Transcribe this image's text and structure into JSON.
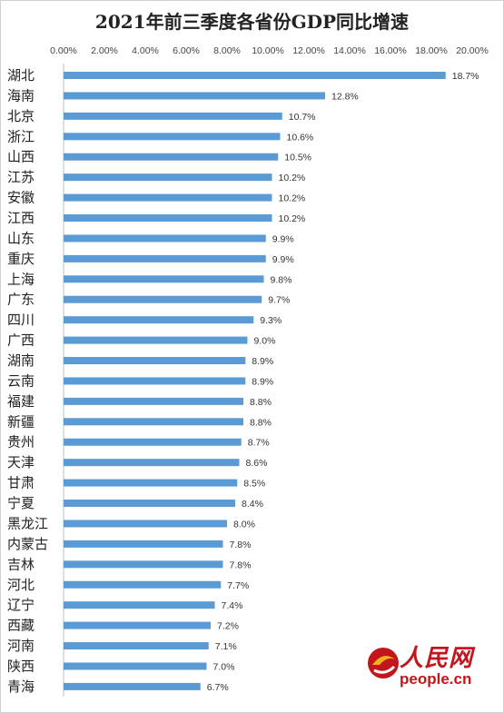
{
  "chart_data": {
    "type": "bar",
    "orientation": "horizontal",
    "title": "2021年前三季度各省份GDP同比增速",
    "xlim": [
      0,
      20
    ],
    "x_ticks": [
      "0.00%",
      "2.00%",
      "4.00%",
      "6.00%",
      "8.00%",
      "10.00%",
      "12.00%",
      "14.00%",
      "16.00%",
      "18.00%",
      "20.00%"
    ],
    "x_axis_position": "top",
    "grid": false,
    "bar_color": "#5b9bd5",
    "categories": [
      "湖北",
      "海南",
      "北京",
      "浙江",
      "山西",
      "江苏",
      "安徽",
      "江西",
      "山东",
      "重庆",
      "上海",
      "广东",
      "四川",
      "广西",
      "湖南",
      "云南",
      "福建",
      "新疆",
      "贵州",
      "天津",
      "甘肃",
      "宁夏",
      "黑龙江",
      "内蒙古",
      "吉林",
      "河北",
      "辽宁",
      "西藏",
      "河南",
      "陕西",
      "青海"
    ],
    "values": [
      18.7,
      12.8,
      10.7,
      10.6,
      10.5,
      10.2,
      10.2,
      10.2,
      9.9,
      9.9,
      9.8,
      9.7,
      9.3,
      9.0,
      8.9,
      8.9,
      8.8,
      8.8,
      8.7,
      8.6,
      8.5,
      8.4,
      8.0,
      7.8,
      7.8,
      7.7,
      7.4,
      7.2,
      7.1,
      7.0,
      6.7
    ],
    "data_labels": [
      "18.7%",
      "12.8%",
      "10.7%",
      "10.6%",
      "10.5%",
      "10.2%",
      "10.2%",
      "10.2%",
      "9.9%",
      "9.9%",
      "9.8%",
      "9.7%",
      "9.3%",
      "9.0%",
      "8.9%",
      "8.9%",
      "8.8%",
      "8.8%",
      "8.7%",
      "8.6%",
      "8.5%",
      "8.4%",
      "8.0%",
      "7.8%",
      "7.8%",
      "7.7%",
      "7.4%",
      "7.2%",
      "7.1%",
      "7.0%",
      "6.7%"
    ]
  },
  "watermark": {
    "brand_cn": "人民网",
    "url": "people.cn",
    "color": "#c3161c"
  }
}
